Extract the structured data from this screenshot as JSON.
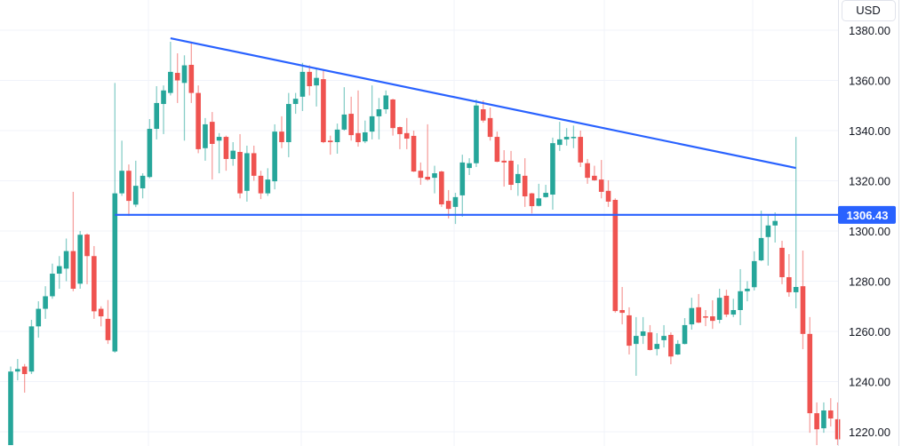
{
  "chart_data": {
    "type": "candlestick",
    "currency": "USD",
    "y_ticks": [
      "1380.00",
      "1360.00",
      "1340.00",
      "1320.00",
      "1300.00",
      "1280.00",
      "1260.00",
      "1240.00",
      "1220.00"
    ],
    "ylim": [
      1211,
      1392
    ],
    "grid": true,
    "colors": {
      "up": "#26a69a",
      "down": "#ef5350",
      "line": "#2962ff"
    },
    "price_label": {
      "value": 1306.43,
      "text": "1306.43"
    },
    "horizontal_line": {
      "price": 1306.43,
      "from_index": 15
    },
    "trend_line": {
      "from_index": 23,
      "from_price": 1376.8,
      "to_index": 113,
      "to_price": 1325.1
    },
    "ohlc_fields": [
      "open",
      "high",
      "low",
      "close"
    ],
    "ohlc": [
      [
        1212,
        1246,
        1205,
        1244
      ],
      [
        1244,
        1249,
        1240.5,
        1245
      ],
      [
        1246,
        1247,
        1235.6,
        1243
      ],
      [
        1244,
        1264.6,
        1243,
        1262
      ],
      [
        1262,
        1272,
        1257.5,
        1269
      ],
      [
        1269,
        1278,
        1265,
        1274
      ],
      [
        1274,
        1287,
        1273,
        1283
      ],
      [
        1283,
        1290,
        1277,
        1286
      ],
      [
        1285,
        1297,
        1280,
        1292
      ],
      [
        1292,
        1315.6,
        1276,
        1277
      ],
      [
        1279,
        1300,
        1277,
        1298.5
      ],
      [
        1298.6,
        1299,
        1278.8,
        1290
      ],
      [
        1290,
        1294,
        1265,
        1268
      ],
      [
        1269,
        1270,
        1262,
        1266
      ],
      [
        1265,
        1272.5,
        1255,
        1256.5
      ],
      [
        1252,
        1359,
        1251.5,
        1315
      ],
      [
        1315,
        1336,
        1314,
        1324
      ],
      [
        1324,
        1326.5,
        1306,
        1312
      ],
      [
        1310.5,
        1328,
        1309.5,
        1318
      ],
      [
        1317,
        1323,
        1313,
        1322
      ],
      [
        1321.5,
        1344.6,
        1321,
        1340.7
      ],
      [
        1340.7,
        1357.7,
        1336.5,
        1351
      ],
      [
        1350.6,
        1358,
        1338.6,
        1356
      ],
      [
        1355,
        1375.4,
        1354,
        1363.4
      ],
      [
        1363,
        1370.8,
        1351,
        1360
      ],
      [
        1359,
        1370,
        1336,
        1366
      ],
      [
        1366.2,
        1375.4,
        1351,
        1355
      ],
      [
        1355,
        1358,
        1331,
        1332.6
      ],
      [
        1333,
        1345,
        1328,
        1342.5
      ],
      [
        1343.5,
        1347.4,
        1320.5,
        1334.7
      ],
      [
        1336,
        1339,
        1323,
        1337.5
      ],
      [
        1337.5,
        1338,
        1324,
        1328.7
      ],
      [
        1328.7,
        1335.4,
        1326,
        1332
      ],
      [
        1331.5,
        1338.6,
        1313,
        1315
      ],
      [
        1316,
        1334,
        1311.7,
        1331
      ],
      [
        1331,
        1334,
        1320,
        1322
      ],
      [
        1322,
        1324,
        1312.7,
        1315
      ],
      [
        1315,
        1325,
        1314,
        1320.5
      ],
      [
        1319.8,
        1342.5,
        1316.6,
        1339.6
      ],
      [
        1339.6,
        1345.7,
        1333,
        1335.4
      ],
      [
        1335.4,
        1355,
        1329.4,
        1350.6
      ],
      [
        1350.6,
        1355,
        1346.7,
        1352.7
      ],
      [
        1353.5,
        1367,
        1347.8,
        1363.4
      ],
      [
        1363.4,
        1366,
        1354,
        1357.7
      ],
      [
        1358,
        1364.8,
        1349.6,
        1361
      ],
      [
        1360.5,
        1364.4,
        1335,
        1335.4
      ],
      [
        1336,
        1338,
        1330.4,
        1335.4
      ],
      [
        1335.4,
        1342.8,
        1330.8,
        1340.4
      ],
      [
        1340.4,
        1357.3,
        1340,
        1346.4
      ],
      [
        1346.7,
        1353.5,
        1336,
        1338.2
      ],
      [
        1339,
        1356,
        1333.6,
        1335.4
      ],
      [
        1335.7,
        1344,
        1335,
        1339.3
      ],
      [
        1339.6,
        1358,
        1336.5,
        1345.7
      ],
      [
        1345.7,
        1353,
        1336.5,
        1348.5
      ],
      [
        1348.5,
        1356,
        1346.7,
        1354
      ],
      [
        1352.4,
        1352.7,
        1338,
        1341
      ],
      [
        1341.4,
        1341.6,
        1332.6,
        1338.6
      ],
      [
        1339,
        1345,
        1332.6,
        1336.8
      ],
      [
        1337.9,
        1340,
        1323.5,
        1323.7
      ],
      [
        1324,
        1327.3,
        1318.4,
        1321.2
      ],
      [
        1321.6,
        1342.5,
        1320,
        1320.5
      ],
      [
        1321.2,
        1326,
        1315,
        1323
      ],
      [
        1323.7,
        1324,
        1309.6,
        1310.6
      ],
      [
        1312,
        1316.3,
        1305,
        1308.8
      ],
      [
        1309.6,
        1315.2,
        1302.8,
        1313.5
      ],
      [
        1314.2,
        1330.4,
        1305.7,
        1327.3
      ],
      [
        1325.1,
        1329,
        1322.3,
        1327
      ],
      [
        1327,
        1352.4,
        1325.5,
        1350
      ],
      [
        1348.5,
        1352,
        1343.2,
        1344
      ],
      [
        1345,
        1349.2,
        1336,
        1337.5
      ],
      [
        1337.5,
        1339.6,
        1327.4,
        1327.6
      ],
      [
        1328,
        1332.2,
        1317.7,
        1327.3
      ],
      [
        1328,
        1331.9,
        1316.3,
        1318.4
      ],
      [
        1319.1,
        1326.5,
        1314,
        1322.7
      ],
      [
        1322,
        1329,
        1309.6,
        1313.8
      ],
      [
        1315,
        1315.2,
        1307,
        1309.9
      ],
      [
        1310,
        1318.8,
        1309.8,
        1313
      ],
      [
        1313.5,
        1318.4,
        1313.3,
        1315.2
      ],
      [
        1314.5,
        1337.2,
        1308.5,
        1335
      ],
      [
        1334.3,
        1343.5,
        1331.9,
        1336.5
      ],
      [
        1336.5,
        1341,
        1334,
        1337.5
      ],
      [
        1337.2,
        1342,
        1333,
        1337.5
      ],
      [
        1337.5,
        1340,
        1325.5,
        1327.3
      ],
      [
        1327,
        1328.7,
        1318.8,
        1321.2
      ],
      [
        1322,
        1326,
        1320,
        1320.2
      ],
      [
        1320.5,
        1328.3,
        1313,
        1315.6
      ],
      [
        1316,
        1320.2,
        1309.6,
        1311.7
      ],
      [
        1312.4,
        1313,
        1267.5,
        1268.1
      ],
      [
        1268.5,
        1277.7,
        1262.8,
        1267.4
      ],
      [
        1266.4,
        1269.6,
        1250.8,
        1254.3
      ],
      [
        1255,
        1265.7,
        1242.3,
        1258.2
      ],
      [
        1258.2,
        1265.7,
        1255,
        1260
      ],
      [
        1259.6,
        1262.5,
        1252.4,
        1252.6
      ],
      [
        1253,
        1259.3,
        1250.4,
        1255
      ],
      [
        1256.5,
        1262.5,
        1253.6,
        1258.2
      ],
      [
        1258.6,
        1259.6,
        1246.9,
        1250
      ],
      [
        1250.8,
        1256.5,
        1250.6,
        1255
      ],
      [
        1255,
        1265.3,
        1254.8,
        1262.5
      ],
      [
        1262.8,
        1273.4,
        1260.7,
        1269.3
      ],
      [
        1269.6,
        1274.9,
        1263.3,
        1263.5
      ],
      [
        1266,
        1268.5,
        1262.1,
        1265.7
      ],
      [
        1266,
        1272.4,
        1261,
        1264.2
      ],
      [
        1264.6,
        1277,
        1263.2,
        1273.4
      ],
      [
        1274.2,
        1276.6,
        1265.7,
        1266.7
      ],
      [
        1266.7,
        1273,
        1265.7,
        1268.5
      ],
      [
        1268.5,
        1284.8,
        1262.5,
        1276
      ],
      [
        1276,
        1280,
        1272,
        1277
      ],
      [
        1277.6,
        1291.9,
        1276.3,
        1288
      ],
      [
        1288.3,
        1308.1,
        1288,
        1297.2
      ],
      [
        1297.6,
        1306.7,
        1286.2,
        1302.2
      ],
      [
        1302.2,
        1307.4,
        1295.4,
        1304
      ],
      [
        1293.3,
        1296.1,
        1278.8,
        1281.6
      ],
      [
        1281.6,
        1290.8,
        1273.8,
        1275.6
      ],
      [
        1275.6,
        1337.5,
        1269.2,
        1277.7
      ],
      [
        1278,
        1292.2,
        1252.9,
        1259
      ],
      [
        1259,
        1265.7,
        1219.6,
        1227.4
      ],
      [
        1227.4,
        1231.7,
        1214,
        1221
      ],
      [
        1221.4,
        1231.7,
        1219.6,
        1228.5
      ],
      [
        1228.5,
        1233.4,
        1222.1,
        1225.3
      ],
      [
        1225,
        1231.7,
        1214,
        1217
      ]
    ]
  }
}
